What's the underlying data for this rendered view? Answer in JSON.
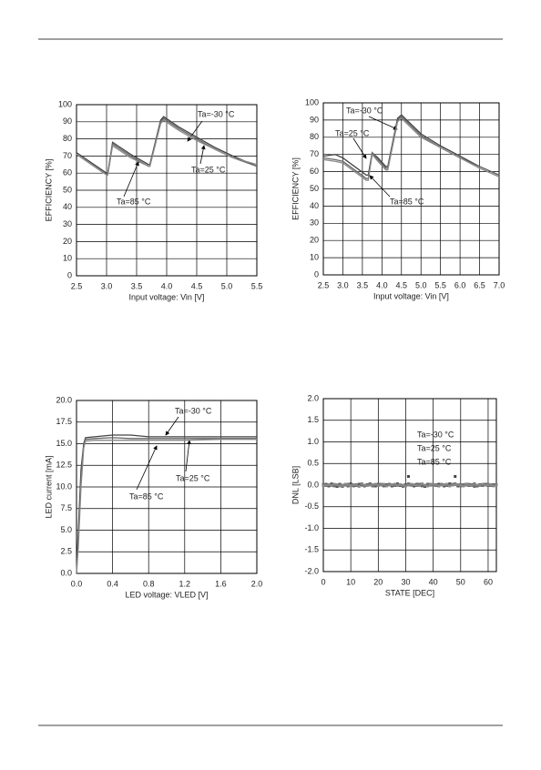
{
  "chart_data": [
    {
      "type": "line",
      "xlabel": "Input voltage: Vin [V]",
      "ylabel": "EFFICIENCY [%]",
      "x": [
        2.5,
        2.75,
        3.0,
        3.02,
        3.1,
        3.4,
        3.7,
        3.72,
        3.9,
        3.95,
        4.2,
        4.5,
        4.8,
        5.1,
        5.5
      ],
      "series": [
        {
          "name": "Ta=-30 °C",
          "color": "#444444",
          "values": [
            72,
            66,
            60,
            60,
            78,
            71,
            65,
            65,
            91,
            93,
            87,
            81,
            75,
            70,
            64
          ]
        },
        {
          "name": "Ta=25 °C",
          "color": "#666666",
          "values": [
            71,
            65,
            59,
            59,
            77,
            70,
            64,
            64,
            90,
            92,
            86,
            80,
            74,
            69,
            64
          ]
        },
        {
          "name": "Ta=85 °C",
          "color": "#888888",
          "values": [
            71,
            65,
            59,
            59,
            76,
            69,
            64,
            64,
            89,
            91,
            85,
            79,
            74,
            69,
            65
          ]
        }
      ],
      "xlim": [
        2.5,
        5.5
      ],
      "xticks": [
        2.5,
        {
          "value": 3,
          "label": "3.0"
        },
        3.5,
        {
          "value": 4,
          "label": "4.0"
        },
        4.5,
        {
          "value": 5,
          "label": "5.0"
        },
        5.5
      ],
      "ylim": [
        0,
        100
      ],
      "yticks": [
        0,
        10,
        20,
        30,
        40,
        50,
        60,
        70,
        80,
        90,
        100
      ],
      "grid": true
    },
    {
      "type": "line",
      "xlabel": "Input voltage: Vin [V]",
      "ylabel": "EFFICIENCY [%]",
      "x": [
        2.5,
        2.8,
        3.0,
        3.3,
        3.6,
        3.65,
        3.75,
        3.9,
        4.1,
        4.15,
        4.4,
        4.5,
        5.0,
        5.5,
        6.0,
        6.5,
        7.0
      ],
      "series": [
        {
          "name": "Ta=-30 °C",
          "color": "#444444",
          "values": [
            69,
            70,
            68,
            63,
            58,
            58,
            71,
            68,
            63,
            63,
            91,
            93,
            82,
            75,
            69,
            63,
            58
          ]
        },
        {
          "name": "Ta=25 °C",
          "color": "#666666",
          "values": [
            68,
            67,
            66,
            61,
            56,
            56,
            71,
            67,
            62,
            62,
            90,
            92,
            81,
            74,
            68,
            63,
            58
          ]
        },
        {
          "name": "Ta=85 °C",
          "color": "#888888",
          "values": [
            67,
            66,
            65,
            60,
            55,
            55,
            70,
            66,
            61,
            61,
            89,
            91,
            80,
            74,
            68,
            62,
            57
          ]
        }
      ],
      "xlim": [
        2.5,
        7.0
      ],
      "xticks": [
        2.5,
        {
          "value": 3,
          "label": "3.0"
        },
        3.5,
        {
          "value": 4,
          "label": "4.0"
        },
        4.5,
        {
          "value": 5,
          "label": "5.0"
        },
        5.5,
        {
          "value": 6,
          "label": "6.0"
        },
        6.5,
        {
          "value": 7,
          "label": "7.0"
        }
      ],
      "ylim": [
        0,
        100
      ],
      "yticks": [
        0,
        10,
        20,
        30,
        40,
        50,
        60,
        70,
        80,
        90,
        100
      ],
      "grid": true
    },
    {
      "type": "line",
      "xlabel": "LED voltage: VLED [V]",
      "ylabel": "LED current [mA]",
      "x": [
        0,
        0.02,
        0.05,
        0.08,
        0.1,
        0.2,
        0.4,
        0.6,
        0.8,
        1.2,
        1.6,
        2.0
      ],
      "series": [
        {
          "name": "Ta=-30 °C",
          "color": "#444444",
          "values": [
            0,
            5,
            12,
            15,
            15.7,
            15.8,
            16,
            16,
            15.8,
            15.8,
            15.8,
            15.8
          ]
        },
        {
          "name": "Ta=25 °C",
          "color": "#666666",
          "values": [
            0,
            4,
            11,
            14.8,
            15.5,
            15.6,
            15.7,
            15.6,
            15.6,
            15.6,
            15.6,
            15.6
          ]
        },
        {
          "name": "Ta=85 °C",
          "color": "#888888",
          "values": [
            0,
            3,
            10,
            14.5,
            15.3,
            15.4,
            15.4,
            15.4,
            15.4,
            15.4,
            15.5,
            15.5
          ]
        }
      ],
      "xlim": [
        0,
        2.0
      ],
      "xticks": [
        {
          "value": 0,
          "label": "0.0"
        },
        0.4,
        0.8,
        1.2,
        1.6,
        {
          "value": 2,
          "label": "2.0"
        }
      ],
      "ylim": [
        0,
        20
      ],
      "yticks": [
        {
          "value": 0,
          "label": "0.0"
        },
        2.5,
        {
          "value": 5,
          "label": "5.0"
        },
        7.5,
        {
          "value": 10,
          "label": "10.0"
        },
        12.5,
        {
          "value": 15,
          "label": "15.0"
        },
        17.5,
        {
          "value": 20,
          "label": "20.0"
        }
      ],
      "grid": true
    },
    {
      "type": "scatter",
      "xlabel": "STATE [DEC]",
      "ylabel": "DNL [LSB]",
      "x": [
        0,
        1,
        2,
        3,
        4,
        5,
        6,
        7,
        8,
        9,
        10,
        11,
        12,
        13,
        14,
        15,
        16,
        17,
        18,
        19,
        20,
        21,
        22,
        23,
        24,
        25,
        26,
        27,
        28,
        29,
        30,
        31,
        32,
        33,
        34,
        35,
        36,
        37,
        38,
        39,
        40,
        41,
        42,
        43,
        44,
        45,
        46,
        47,
        48,
        49,
        50,
        51,
        52,
        53,
        54,
        55,
        56,
        57,
        58,
        59,
        60,
        61,
        62,
        63
      ],
      "series": [
        {
          "name": "Ta=-30 °C",
          "color": "#444444",
          "values": [
            0,
            0.02,
            -0.02,
            0.03,
            0,
            -0.03,
            0.02,
            0,
            0.01,
            -0.02,
            0.03,
            0,
            -0.01,
            0.02,
            0,
            -0.02,
            0.01,
            0.03,
            0,
            -0.02,
            0.02,
            0,
            -0.01,
            0.01,
            0.02,
            -0.02,
            0,
            0.03,
            -0.01,
            0,
            0.01,
            0.2,
            0,
            -0.02,
            0.02,
            0.01,
            0,
            -0.03,
            0.02,
            0,
            0.01,
            -0.01,
            0.02,
            0,
            -0.02,
            0.01,
            0.03,
            0,
            0.2,
            -0.02,
            0.01,
            0,
            0.02,
            -0.01,
            0,
            0.03,
            -0.02,
            0.01,
            0,
            0.02,
            -0.01,
            0,
            0.01,
            0
          ]
        },
        {
          "name": "Ta=25 °C",
          "color": "#666666",
          "values": [
            0.01,
            -0.01,
            0,
            0.02,
            -0.02,
            0,
            0.01,
            -0.03,
            0,
            0.02,
            0,
            -0.02,
            0.01,
            0,
            0.03,
            -0.01,
            0,
            0.02,
            -0.02,
            0,
            0.01,
            0.02,
            -0.02,
            0,
            0.01,
            0,
            -0.01,
            0.02,
            0,
            -0.03,
            0,
            0.03,
            0.01,
            0,
            -0.01,
            0.02,
            -0.02,
            0,
            0.01,
            0.02,
            0,
            0.01,
            -0.02,
            0.02,
            0,
            -0.01,
            0,
            0.02,
            0.03,
            0,
            -0.02,
            0.01,
            0,
            0.02,
            0.01,
            -0.03,
            0,
            0.01,
            -0.01,
            0,
            0.02,
            -0.01,
            0,
            0.01
          ]
        },
        {
          "name": "Ta=85 °C",
          "color": "#888888",
          "values": [
            -0.01,
            0,
            0.01,
            -0.01,
            0.02,
            0.01,
            -0.02,
            0,
            0.02,
            0,
            -0.01,
            0.01,
            0,
            -0.03,
            0.02,
            0,
            -0.01,
            0,
            0.01,
            0.02,
            -0.01,
            0,
            0.02,
            -0.02,
            0,
            0.01,
            0.02,
            -0.01,
            0.01,
            0,
            -0.02,
            0,
            0.02,
            0.01,
            0,
            -0.01,
            0.03,
            0,
            -0.02,
            0.01,
            0.02,
            0,
            -0.01,
            0,
            0.01,
            0.02,
            -0.02,
            0,
            0.01,
            0.01,
            0,
            -0.02,
            0.01,
            0,
            -0.01,
            0.02,
            0,
            -0.01,
            0.02,
            0,
            0,
            0.01,
            -0.02,
            0
          ]
        }
      ],
      "xlim": [
        0,
        63
      ],
      "xticks": [
        0,
        10,
        20,
        30,
        40,
        50,
        60
      ],
      "ylim": [
        -2,
        2
      ],
      "yticks": [
        {
          "value": -2,
          "label": "-2.0"
        },
        -1.5,
        {
          "value": -1,
          "label": "-1.0"
        },
        -0.5,
        {
          "value": 0,
          "label": "0.0"
        },
        0.5,
        {
          "value": 1,
          "label": "1.0"
        },
        1.5,
        {
          "value": 2,
          "label": "2.0"
        }
      ],
      "grid": true
    }
  ]
}
